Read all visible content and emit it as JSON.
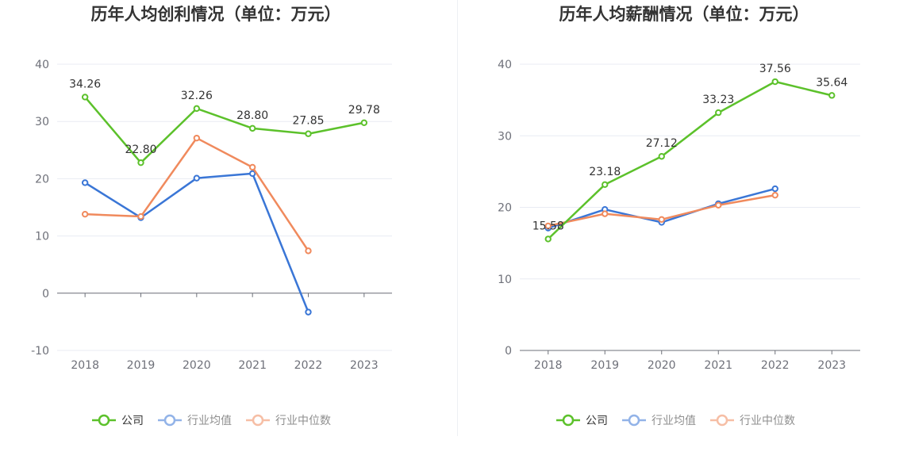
{
  "colors": {
    "company": "#5cc12b",
    "industry_avg": "#3a76d6",
    "industry_median": "#f08a5d",
    "grid": "#e8ebf3",
    "axis": "#6e7079"
  },
  "legend": [
    "公司",
    "行业均值",
    "行业中位数"
  ],
  "chart_data": [
    {
      "type": "line",
      "title": "历年人均创利情况（单位：万元）",
      "categories": [
        "2018",
        "2019",
        "2020",
        "2021",
        "2022",
        "2023"
      ],
      "ylim": [
        -10,
        40
      ],
      "yticks": [
        -10,
        0,
        10,
        20,
        30,
        40
      ],
      "grid": true,
      "legend_position": "bottom",
      "series": [
        {
          "name": "公司",
          "color_key": "company",
          "labeled": true,
          "values": [
            34.26,
            22.8,
            32.26,
            28.8,
            27.85,
            29.78
          ],
          "labels": [
            "34.26",
            "22.80",
            "32.26",
            "28.80",
            "27.85",
            "29.78"
          ]
        },
        {
          "name": "行业均值",
          "color_key": "industry_avg",
          "labeled": false,
          "values": [
            19.3,
            13.2,
            20.1,
            20.9,
            -3.3,
            null
          ]
        },
        {
          "name": "行业中位数",
          "color_key": "industry_median",
          "labeled": false,
          "values": [
            13.8,
            13.4,
            27.1,
            22.0,
            7.4,
            null
          ]
        }
      ]
    },
    {
      "type": "line",
      "title": "历年人均薪酬情况（单位：万元）",
      "categories": [
        "2018",
        "2019",
        "2020",
        "2021",
        "2022",
        "2023"
      ],
      "ylim": [
        0,
        40
      ],
      "yticks": [
        0,
        10,
        20,
        30,
        40
      ],
      "grid": true,
      "legend_position": "bottom",
      "series": [
        {
          "name": "公司",
          "color_key": "company",
          "labeled": true,
          "values": [
            15.58,
            23.18,
            27.12,
            33.23,
            37.56,
            35.64
          ],
          "labels": [
            "15.58",
            "23.18",
            "27.12",
            "33.23",
            "37.56",
            "35.64"
          ]
        },
        {
          "name": "行业均值",
          "color_key": "industry_avg",
          "labeled": false,
          "values": [
            17.1,
            19.7,
            17.9,
            20.5,
            22.6,
            null
          ]
        },
        {
          "name": "行业中位数",
          "color_key": "industry_median",
          "labeled": false,
          "values": [
            17.4,
            19.1,
            18.3,
            20.3,
            21.7,
            null
          ]
        }
      ]
    }
  ]
}
